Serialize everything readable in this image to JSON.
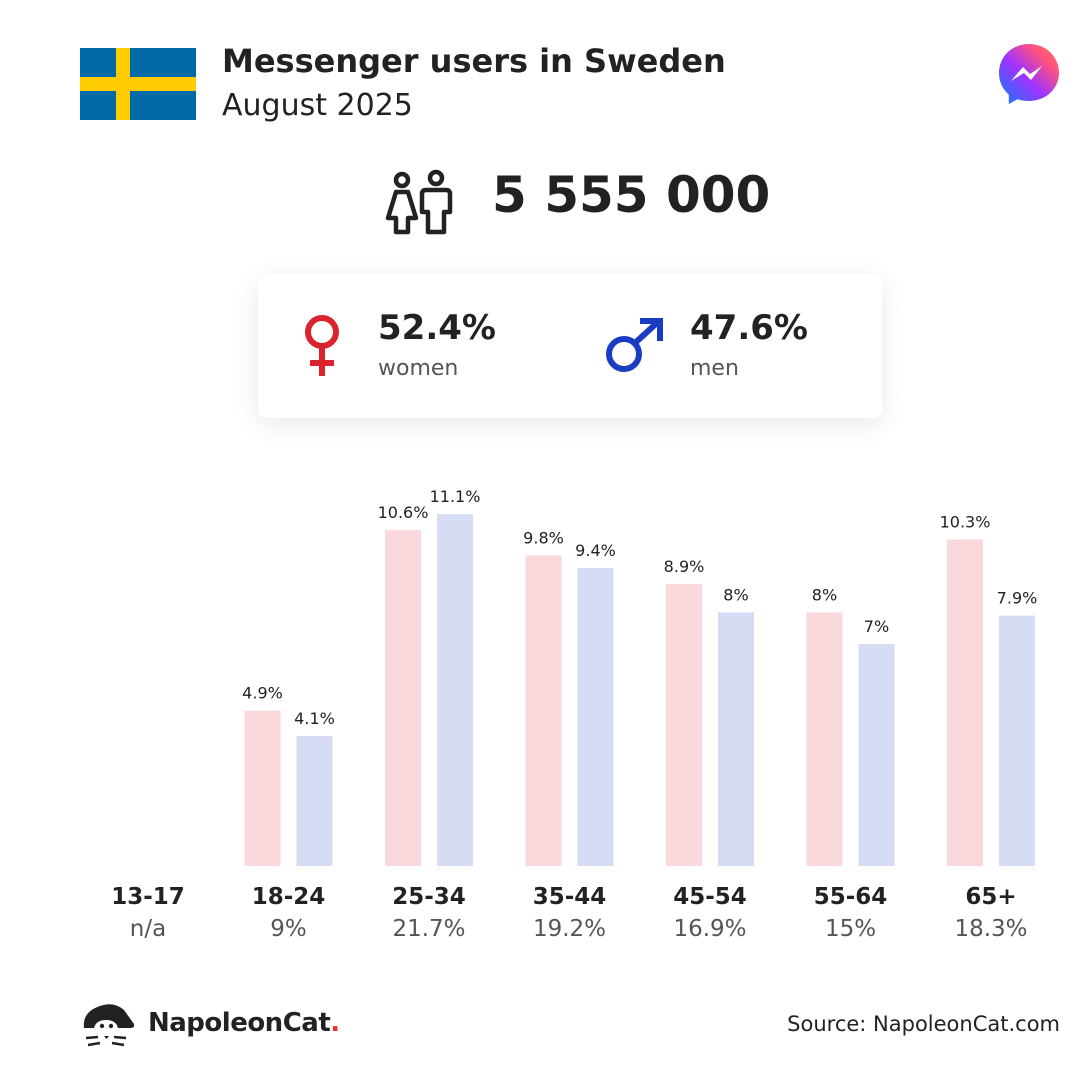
{
  "header": {
    "title": "Messenger users in Sweden",
    "subtitle": "August 2025",
    "flag_colors": {
      "blue": "#006aa7",
      "yellow": "#fecc00"
    },
    "logo_icon": "messenger-logo-icon"
  },
  "total": {
    "value": "5 555 000",
    "icon": "people-icon"
  },
  "gender": {
    "women": {
      "pct": "52.4%",
      "label": "women",
      "color": "#d9232d",
      "icon": "female-icon"
    },
    "men": {
      "pct": "47.6%",
      "label": "men",
      "color": "#1a3cc2",
      "icon": "male-icon"
    }
  },
  "chart_data": {
    "type": "bar",
    "categories": [
      "13-17",
      "18-24",
      "25-34",
      "35-44",
      "45-54",
      "55-64",
      "65+"
    ],
    "category_shares": [
      "n/a",
      "9%",
      "21.7%",
      "19.2%",
      "16.9%",
      "15%",
      "18.3%"
    ],
    "series": [
      {
        "values": [
          null,
          4.9,
          10.6,
          9.8,
          8.9,
          8.0,
          10.3
        ],
        "labels": [
          "",
          "4.9%",
          "10.6%",
          "9.8%",
          "8.9%",
          "8%",
          "10.3%"
        ],
        "color": "#f9d9dc"
      },
      {
        "values": [
          null,
          4.1,
          11.1,
          9.4,
          8.0,
          7.0,
          7.9
        ],
        "labels": [
          "",
          "4.1%",
          "11.1%",
          "9.4%",
          "8%",
          "7%",
          "7.9%"
        ],
        "color": "#d6dcf3"
      }
    ],
    "ylim": [
      0,
      11.1
    ],
    "grid": false,
    "legend": "none"
  },
  "footer": {
    "brand": "NapoleonCat",
    "brand_dot": ".",
    "source": "Source: NapoleonCat.com"
  }
}
